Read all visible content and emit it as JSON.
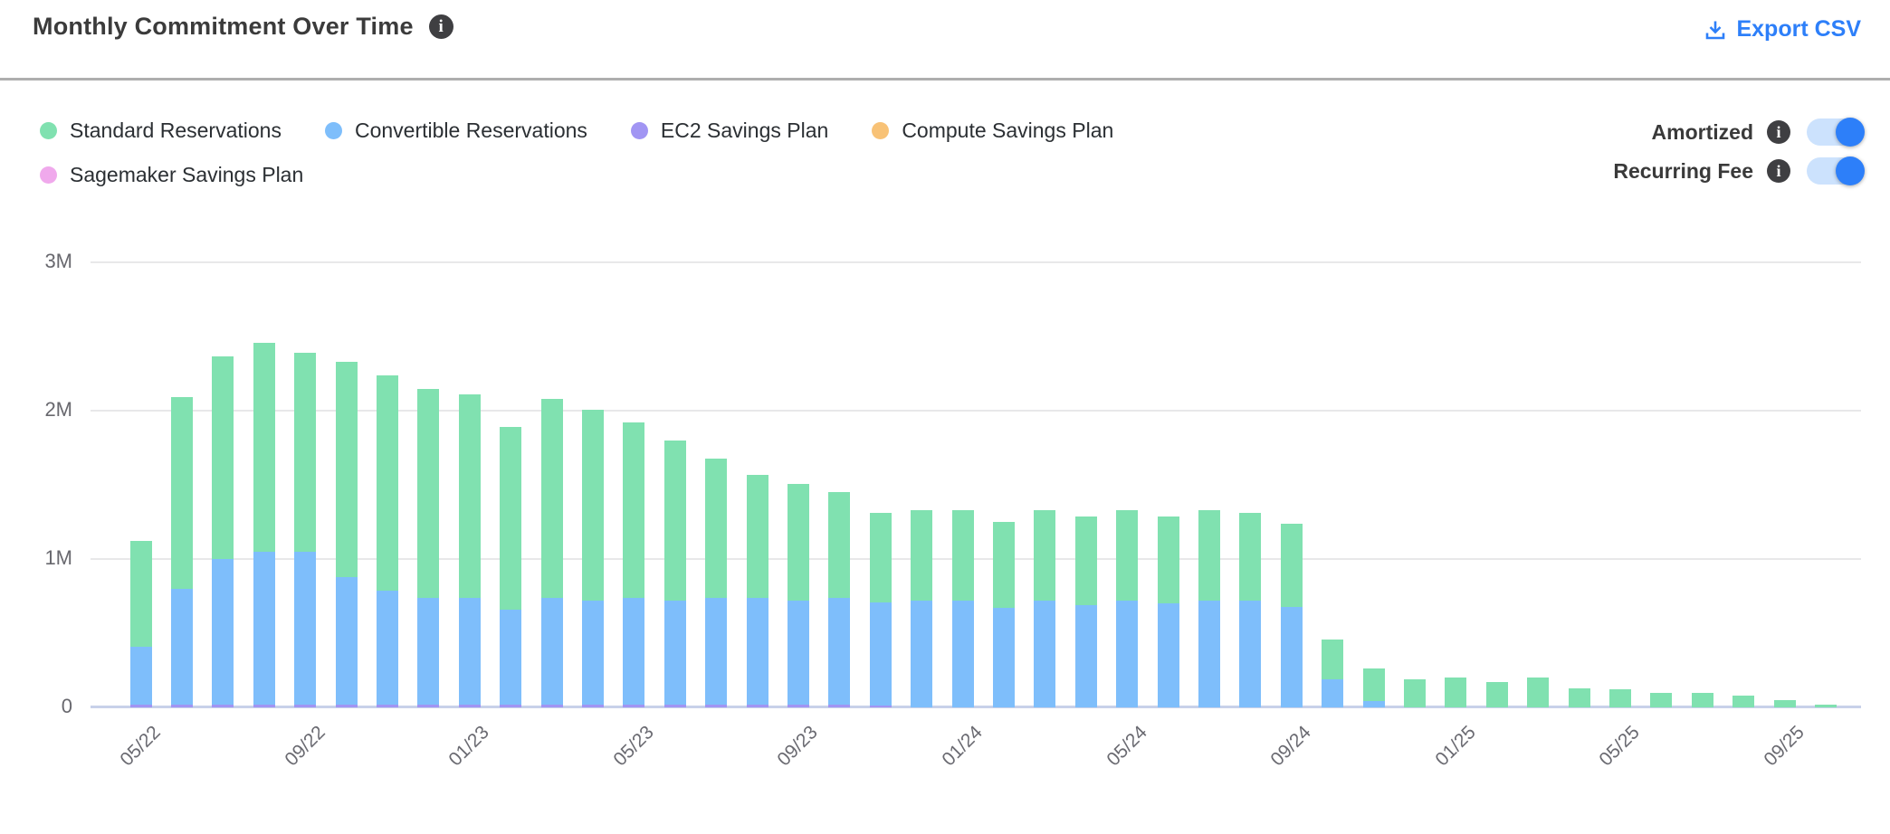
{
  "header": {
    "title": "Monthly Commitment Over Time",
    "export_label": "Export CSV"
  },
  "colors": {
    "accent_blue": "#2d7ff9",
    "toggle_track": "#cce2fd",
    "standard_green": "#80e1b0",
    "convertible_blue": "#7ebefb",
    "ec2_purple": "#a195f3",
    "compute_orange": "#f8c276",
    "sagemaker_pink": "#f0a9ec"
  },
  "legend": {
    "items": [
      {
        "label": "Standard Reservations",
        "color": "#80e1b0",
        "row": 1
      },
      {
        "label": "Convertible Reservations",
        "color": "#7ebefb",
        "row": 1
      },
      {
        "label": "EC2 Savings Plan",
        "color": "#a195f3",
        "row": 1
      },
      {
        "label": "Compute Savings Plan",
        "color": "#f8c276",
        "row": 1
      },
      {
        "label": "Sagemaker Savings Plan",
        "color": "#f0a9ec",
        "row": 2
      }
    ]
  },
  "toggles": [
    {
      "label": "Amortized",
      "state": "on"
    },
    {
      "label": "Recurring Fee",
      "state": "on"
    }
  ],
  "chart_data": {
    "type": "bar",
    "stacked": true,
    "title": "Monthly Commitment Over Time",
    "values_unit": "millions",
    "ylim": [
      0,
      3
    ],
    "y_ticks": [
      {
        "value": 0,
        "label": "0"
      },
      {
        "value": 1,
        "label": "1M"
      },
      {
        "value": 2,
        "label": "2M"
      },
      {
        "value": 3,
        "label": "3M"
      }
    ],
    "x": [
      "05/22",
      "06/22",
      "07/22",
      "08/22",
      "09/22",
      "10/22",
      "11/22",
      "12/22",
      "01/23",
      "02/23",
      "03/23",
      "04/23",
      "05/23",
      "06/23",
      "07/23",
      "08/23",
      "09/23",
      "10/23",
      "11/23",
      "12/23",
      "01/24",
      "02/24",
      "03/24",
      "04/24",
      "05/24",
      "06/24",
      "07/24",
      "08/24",
      "09/24",
      "10/24",
      "11/24",
      "12/24",
      "01/25",
      "02/25",
      "03/25",
      "04/25",
      "05/25",
      "06/25",
      "07/25",
      "08/25",
      "09/25",
      "10/25"
    ],
    "x_tick_indices": [
      0,
      4,
      8,
      12,
      16,
      20,
      24,
      28,
      32,
      36,
      40
    ],
    "series": [
      {
        "key": "ec2_sp",
        "name": "EC2 Savings Plan",
        "color": "#a195f3",
        "values": [
          0.02,
          0.02,
          0.02,
          0.02,
          0.02,
          0.02,
          0.02,
          0.02,
          0.02,
          0.02,
          0.02,
          0.02,
          0.02,
          0.02,
          0.02,
          0.02,
          0.02,
          0.02,
          0.01,
          0,
          0,
          0,
          0,
          0,
          0,
          0,
          0,
          0,
          0,
          0,
          0,
          0,
          0,
          0,
          0,
          0,
          0,
          0,
          0,
          0,
          0,
          0
        ]
      },
      {
        "key": "convertible",
        "name": "Convertible Reservations",
        "color": "#7ebefb",
        "values": [
          0.39,
          0.78,
          0.98,
          1.03,
          1.03,
          0.86,
          0.77,
          0.72,
          0.72,
          0.64,
          0.72,
          0.7,
          0.72,
          0.7,
          0.72,
          0.72,
          0.7,
          0.72,
          0.7,
          0.72,
          0.72,
          0.67,
          0.72,
          0.69,
          0.72,
          0.7,
          0.72,
          0.72,
          0.68,
          0.19,
          0.04,
          0,
          0,
          0,
          0,
          0,
          0,
          0,
          0,
          0,
          0,
          0
        ]
      },
      {
        "key": "standard",
        "name": "Standard Reservations",
        "color": "#80e1b0",
        "values": [
          0.71,
          1.29,
          1.37,
          1.41,
          1.34,
          1.45,
          1.45,
          1.41,
          1.37,
          1.23,
          1.34,
          1.29,
          1.18,
          1.08,
          0.94,
          0.83,
          0.79,
          0.71,
          0.6,
          0.61,
          0.61,
          0.58,
          0.61,
          0.6,
          0.61,
          0.59,
          0.61,
          0.59,
          0.56,
          0.27,
          0.22,
          0.19,
          0.2,
          0.17,
          0.2,
          0.13,
          0.12,
          0.1,
          0.1,
          0.08,
          0.05,
          0.02
        ]
      },
      {
        "key": "compute_sp",
        "name": "Compute Savings Plan",
        "color": "#f8c276",
        "values": [
          0,
          0,
          0,
          0,
          0,
          0,
          0,
          0,
          0,
          0,
          0,
          0,
          0,
          0,
          0,
          0,
          0,
          0,
          0,
          0,
          0,
          0,
          0,
          0,
          0,
          0,
          0,
          0,
          0,
          0,
          0,
          0,
          0,
          0,
          0,
          0,
          0,
          0,
          0,
          0,
          0,
          0
        ]
      },
      {
        "key": "sagemaker_sp",
        "name": "Sagemaker Savings Plan",
        "color": "#f0a9ec",
        "values": [
          0,
          0,
          0,
          0,
          0,
          0,
          0,
          0,
          0,
          0,
          0,
          0,
          0,
          0,
          0,
          0,
          0,
          0,
          0,
          0,
          0,
          0,
          0,
          0,
          0,
          0,
          0,
          0,
          0,
          0,
          0,
          0,
          0,
          0,
          0,
          0,
          0,
          0,
          0,
          0,
          0,
          0
        ]
      }
    ]
  }
}
